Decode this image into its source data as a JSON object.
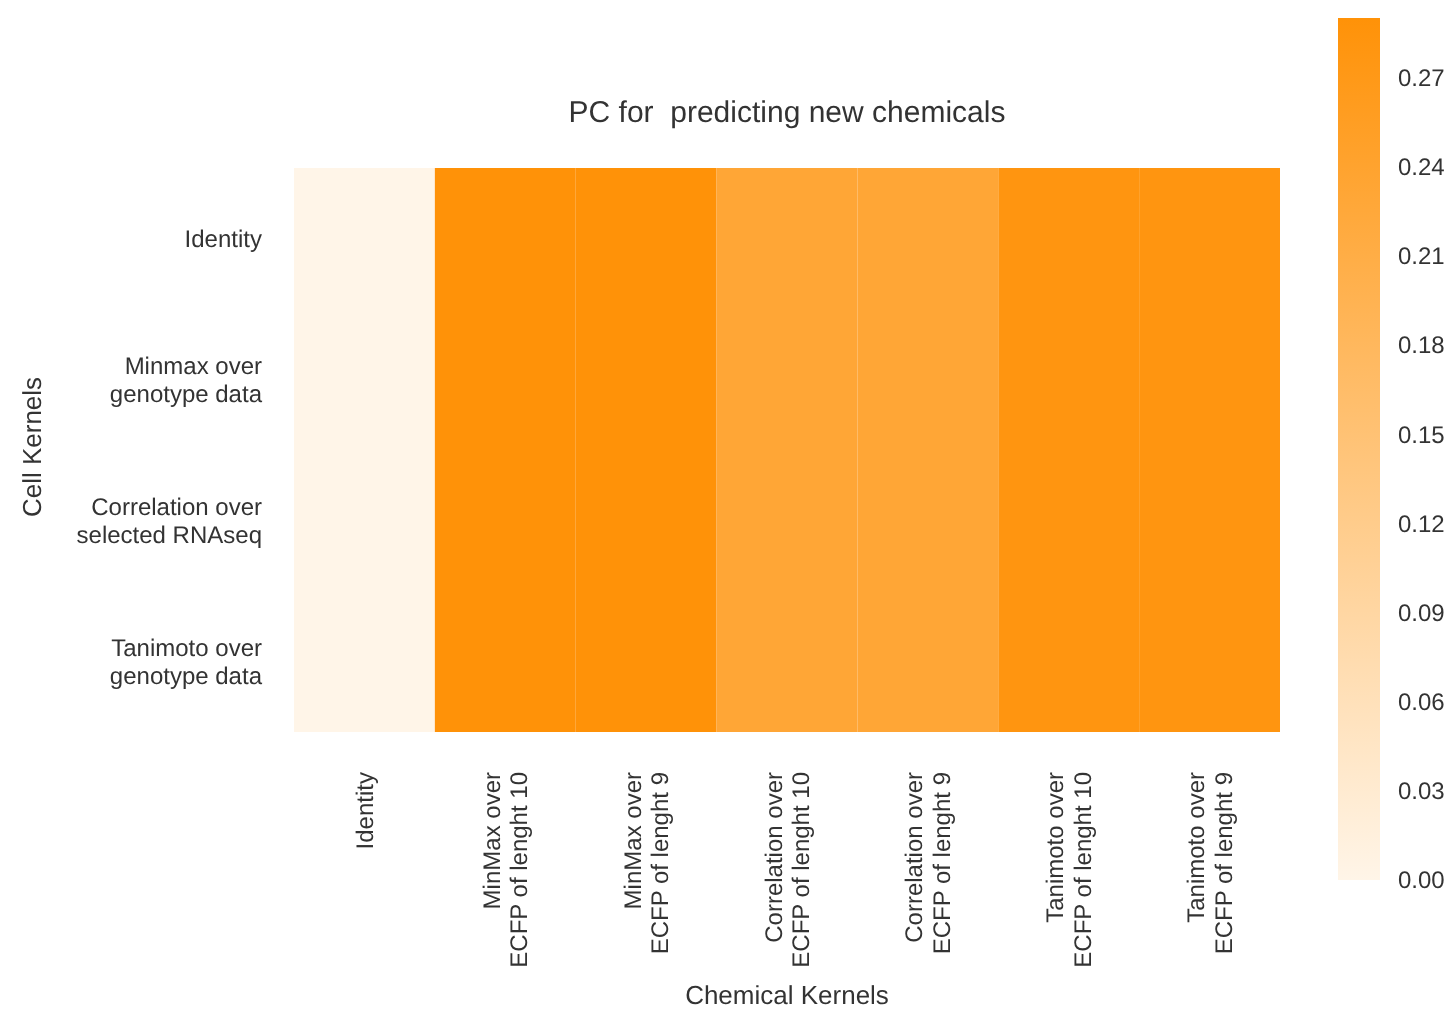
{
  "chart_data": {
    "type": "heatmap",
    "title": "PC for  predicting new chemicals",
    "xlabel": "Chemical Kernels",
    "ylabel": "Cell Kernels",
    "categories": [
      "Identity",
      "MinMax over\nECFP of lenght 10",
      "MinMax over\nECFP of lenght 9",
      "Correlation over\nECFP of lenght 10",
      "Correlation over\nECFP of lenght 9",
      "Tanimoto over\nECFP of lenght 10",
      "Tanimoto over\nECFP of lenght 9"
    ],
    "y_categories": [
      "Identity",
      "Minmax over\ngenotype data",
      "Correlation over\nselected RNAseq",
      "Tanimoto over\ngenotype data"
    ],
    "cells": [
      [
        0,
        0.29,
        0.29,
        0.23,
        0.23,
        0.28,
        0.28
      ],
      [
        0,
        0.29,
        0.29,
        0.23,
        0.23,
        0.28,
        0.28
      ],
      [
        0,
        0.29,
        0.29,
        0.23,
        0.23,
        0.28,
        0.28
      ],
      [
        0,
        0.29,
        0.29,
        0.23,
        0.23,
        0.28,
        0.28
      ]
    ],
    "clim": [
      0,
      0.29
    ],
    "cticks": [
      {
        "value": 0,
        "label": "0.00"
      },
      {
        "value": 0.03,
        "label": "0.03"
      },
      {
        "value": 0.06,
        "label": "0.06"
      },
      {
        "value": 0.09,
        "label": "0.09"
      },
      {
        "value": 0.12,
        "label": "0.12"
      },
      {
        "value": 0.15,
        "label": "0.15"
      },
      {
        "value": 0.18,
        "label": "0.18"
      },
      {
        "value": 0.21,
        "label": "0.21"
      },
      {
        "value": 0.24,
        "label": "0.24"
      },
      {
        "value": 0.27,
        "label": "0.27"
      }
    ]
  }
}
